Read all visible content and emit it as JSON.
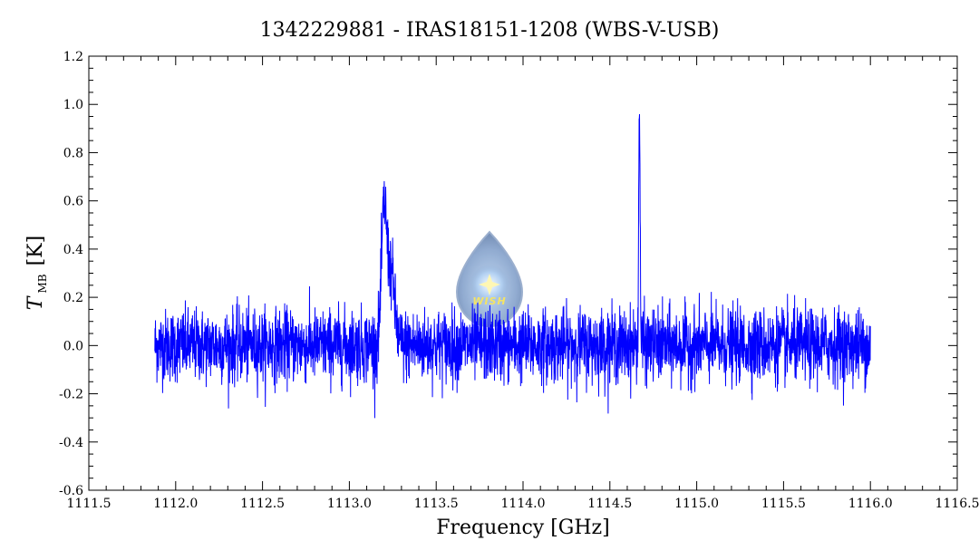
{
  "chart_data": {
    "type": "line",
    "title": "1342229881 - IRAS18151-1208 (WBS-V-USB)",
    "xlabel": "Frequency [GHz]",
    "ylabel_symbol": "T",
    "ylabel_subscript": "MB",
    "ylabel_unit": "[K]",
    "xlim": [
      1111.5,
      1116.5
    ],
    "ylim": [
      -0.6,
      1.2
    ],
    "x_ticks": [
      1111.5,
      1112.0,
      1112.5,
      1113.0,
      1113.5,
      1114.0,
      1114.5,
      1115.0,
      1115.5,
      1116.0,
      1116.5
    ],
    "x_tick_labels": [
      "1111.5",
      "1112.0",
      "1112.5",
      "1113.0",
      "1113.5",
      "1114.0",
      "1114.5",
      "1115.0",
      "1115.5",
      "1116.0",
      "1116.5"
    ],
    "y_ticks": [
      -0.6,
      -0.4,
      -0.2,
      0.0,
      0.2,
      0.4,
      0.6,
      0.8,
      1.0,
      1.2
    ],
    "y_tick_labels": [
      "-0.6",
      "-0.4",
      "-0.2",
      "0.0",
      "0.2",
      "0.4",
      "0.6",
      "0.8",
      "1.0",
      "1.2"
    ],
    "grid": false,
    "line_color": "#0000ff",
    "series": [
      {
        "x_range": [
          1111.88,
          1116.0
        ],
        "noise_rms": 0.075,
        "features": [
          {
            "center": 1113.2,
            "peak": 0.55,
            "width": 0.015
          },
          {
            "center": 1113.24,
            "peak": 0.3,
            "width": 0.02
          },
          {
            "center": 1114.67,
            "peak": 1.0,
            "width": 0.004
          }
        ]
      }
    ],
    "logo": {
      "text": "WISH",
      "color": "#f3e04a"
    }
  }
}
